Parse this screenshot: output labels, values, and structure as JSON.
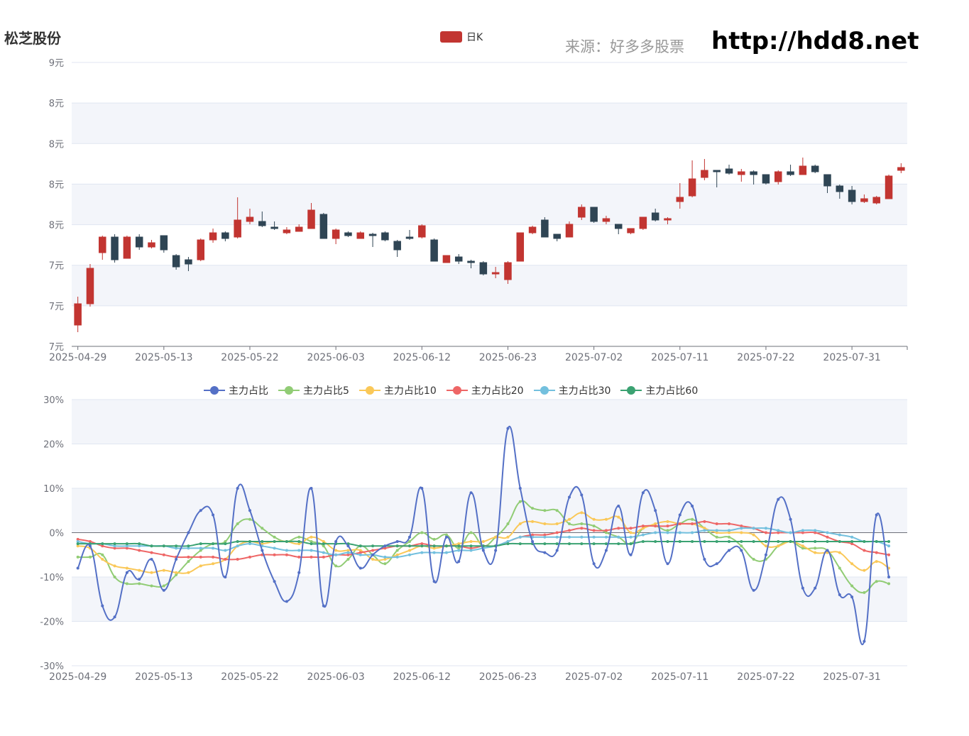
{
  "header": {
    "title": "松芝股份",
    "source": "来源：好多多股票",
    "site": "http://hdd8.net"
  },
  "kline_legend": "日K",
  "line_legend": [
    "主力占比",
    "主力占比5",
    "主力占比10",
    "主力占比20",
    "主力占比30",
    "主力占比60"
  ],
  "colors": {
    "up": "#c23531",
    "down": "#2f4554",
    "series": [
      "#5470c6",
      "#91cc75",
      "#fac858",
      "#ee6666",
      "#73c0de",
      "#3ba272"
    ],
    "grid_band": "#f3f5fa",
    "grid_line": "#e0e6f1",
    "axis_text": "#6e7079"
  },
  "chart_data": [
    {
      "type": "candlestick",
      "title": "",
      "legend": [
        "日K"
      ],
      "ylim": [
        7.0,
        9.0
      ],
      "y_tick_labels": [
        "9元",
        "8元",
        "8元",
        "8元",
        "8元",
        "7元",
        "7元",
        "7元"
      ],
      "x_tick_labels": [
        "2025-04-29",
        "2025-05-13",
        "2025-05-22",
        "2025-06-03",
        "2025-06-12",
        "2025-06-23",
        "2025-07-02",
        "2025-07-11",
        "2025-07-22",
        "2025-07-31"
      ],
      "x_tick_index": [
        0,
        7,
        14,
        21,
        28,
        35,
        42,
        49,
        56,
        63
      ],
      "ohlc": [
        [
          7.15,
          7.3,
          7.1,
          7.35
        ],
        [
          7.3,
          7.55,
          7.28,
          7.58
        ],
        [
          7.66,
          7.77,
          7.61,
          7.78
        ],
        [
          7.77,
          7.61,
          7.59,
          7.79
        ],
        [
          7.62,
          7.77,
          7.62,
          7.78
        ],
        [
          7.77,
          7.7,
          7.68,
          7.79
        ],
        [
          7.7,
          7.73,
          7.69,
          7.75
        ],
        [
          7.78,
          7.68,
          7.66,
          7.78
        ],
        [
          7.64,
          7.56,
          7.54,
          7.65
        ],
        [
          7.61,
          7.58,
          7.53,
          7.63
        ],
        [
          7.61,
          7.75,
          7.6,
          7.76
        ],
        [
          7.75,
          7.8,
          7.73,
          7.83
        ],
        [
          7.8,
          7.76,
          7.74,
          7.81
        ],
        [
          7.77,
          7.89,
          7.76,
          8.05
        ],
        [
          7.88,
          7.91,
          7.86,
          7.97
        ],
        [
          7.88,
          7.85,
          7.84,
          7.95
        ],
        [
          7.84,
          7.83,
          7.82,
          7.88
        ],
        [
          7.8,
          7.82,
          7.79,
          7.84
        ],
        [
          7.81,
          7.84,
          7.81,
          7.86
        ],
        [
          7.83,
          7.96,
          7.83,
          8.01
        ],
        [
          7.93,
          7.76,
          7.76,
          7.94
        ],
        [
          7.76,
          7.82,
          7.72,
          7.83
        ],
        [
          7.8,
          7.78,
          7.77,
          7.81
        ],
        [
          7.76,
          7.8,
          7.76,
          7.81
        ],
        [
          7.79,
          7.78,
          7.7,
          7.8
        ],
        [
          7.8,
          7.75,
          7.74,
          7.81
        ],
        [
          7.74,
          7.68,
          7.63,
          7.75
        ],
        [
          7.77,
          7.76,
          7.75,
          7.82
        ],
        [
          7.77,
          7.85,
          7.76,
          7.86
        ],
        [
          7.75,
          7.6,
          7.6,
          7.76
        ],
        [
          7.59,
          7.64,
          7.59,
          7.64
        ],
        [
          7.63,
          7.6,
          7.58,
          7.65
        ],
        [
          7.6,
          7.59,
          7.55,
          7.61
        ],
        [
          7.59,
          7.51,
          7.5,
          7.6
        ],
        [
          7.51,
          7.52,
          7.48,
          7.56
        ],
        [
          7.47,
          7.59,
          7.44,
          7.6
        ],
        [
          7.6,
          7.8,
          7.6,
          7.8
        ],
        [
          7.8,
          7.84,
          7.79,
          7.85
        ],
        [
          7.89,
          7.77,
          7.77,
          7.91
        ],
        [
          7.79,
          7.76,
          7.74,
          7.79
        ],
        [
          7.77,
          7.86,
          7.77,
          7.88
        ],
        [
          7.91,
          7.98,
          7.89,
          8.0
        ],
        [
          7.98,
          7.88,
          7.87,
          7.98
        ],
        [
          7.88,
          7.9,
          7.86,
          7.92
        ],
        [
          7.86,
          7.83,
          7.79,
          7.86
        ],
        [
          7.8,
          7.83,
          7.79,
          7.83
        ],
        [
          7.83,
          7.91,
          7.82,
          7.91
        ],
        [
          7.94,
          7.89,
          7.88,
          7.97
        ],
        [
          7.89,
          7.9,
          7.86,
          7.91
        ],
        [
          8.02,
          8.05,
          7.97,
          8.15
        ],
        [
          8.06,
          8.18,
          8.05,
          8.31
        ],
        [
          8.19,
          8.24,
          8.17,
          8.32
        ],
        [
          8.24,
          8.23,
          8.12,
          8.24
        ],
        [
          8.25,
          8.22,
          8.21,
          8.28
        ],
        [
          8.21,
          8.23,
          8.16,
          8.25
        ],
        [
          8.23,
          8.21,
          8.14,
          8.24
        ],
        [
          8.21,
          8.15,
          8.14,
          8.21
        ],
        [
          8.16,
          8.23,
          8.14,
          8.24
        ],
        [
          8.23,
          8.21,
          8.2,
          8.28
        ],
        [
          8.21,
          8.27,
          8.21,
          8.33
        ],
        [
          8.27,
          8.23,
          8.22,
          8.28
        ],
        [
          8.21,
          8.13,
          8.08,
          8.21
        ],
        [
          8.13,
          8.09,
          8.04,
          8.14
        ],
        [
          8.1,
          8.02,
          8.0,
          8.13
        ],
        [
          8.02,
          8.04,
          8.01,
          8.07
        ],
        [
          8.01,
          8.05,
          8.0,
          8.06
        ],
        [
          8.04,
          8.2,
          8.04,
          8.21
        ],
        [
          8.24,
          8.26,
          8.22,
          8.29
        ]
      ]
    },
    {
      "type": "line",
      "title": "",
      "ylim": [
        -30,
        30
      ],
      "y_tick_labels": [
        "30%",
        "20%",
        "10%",
        "0%",
        "-10%",
        "-20%",
        "-30%"
      ],
      "x_tick_labels": [
        "2025-04-29",
        "2025-05-13",
        "2025-05-22",
        "2025-06-03",
        "2025-06-12",
        "2025-06-23",
        "2025-07-02",
        "2025-07-11",
        "2025-07-22",
        "2025-07-31"
      ],
      "x_tick_index": [
        0,
        7,
        14,
        21,
        28,
        35,
        42,
        49,
        56,
        63
      ],
      "series": [
        {
          "name": "主力占比",
          "values": [
            -8,
            -3,
            -16.5,
            -19,
            -9,
            -10.5,
            -6,
            -13,
            -6,
            0,
            5,
            4,
            -10,
            10,
            5,
            -4,
            -11,
            -15.5,
            -9,
            10,
            -16.5,
            -2,
            -3,
            -8,
            -5,
            -3,
            -2,
            -1,
            10,
            -11,
            -1,
            -6.5,
            9,
            -4,
            -4,
            23.5,
            10,
            -2,
            -4.5,
            -4,
            8,
            8.5,
            -7,
            -4,
            6,
            -5,
            9,
            5,
            -7,
            4,
            6,
            -6,
            -7,
            -4,
            -4,
            -13,
            -5,
            7.5,
            3,
            -12.5,
            -12.5,
            -4,
            -14,
            -14.5,
            -24.5,
            4,
            -10
          ]
        },
        {
          "name": "主力占比5",
          "values": [
            -5.5,
            -5.5,
            -5,
            -10,
            -11.5,
            -11.5,
            -12,
            -12,
            -9.5,
            -6.5,
            -4,
            -2.5,
            -2,
            2,
            3,
            1,
            -1,
            -2,
            -1,
            -2,
            -3,
            -7.5,
            -6,
            -3,
            -5,
            -7,
            -4,
            -2,
            0,
            -1.5,
            -0.5,
            -3.5,
            0,
            -3,
            -1,
            2,
            7,
            5.5,
            5,
            5,
            2,
            2,
            1.5,
            0,
            -1,
            -2.5,
            1,
            1.5,
            0.5,
            2,
            3,
            1,
            -1,
            -1,
            -3,
            -6,
            -6,
            -3,
            -2,
            -3.5,
            -3.5,
            -4,
            -8,
            -12,
            -13.5,
            -11,
            -11.5
          ]
        },
        {
          "name": "主力占比10",
          "values": [
            -3,
            -3.5,
            -6,
            -7.5,
            -8,
            -8.5,
            -9,
            -8.5,
            -9,
            -9,
            -7.5,
            -7,
            -6,
            -3,
            -2,
            -2.5,
            -2,
            -2,
            -2.5,
            -1,
            -2,
            -4,
            -4,
            -4,
            -6,
            -6,
            -5,
            -4,
            -3,
            -3.5,
            -3,
            -2.5,
            -2,
            -2,
            -1,
            -1,
            2,
            2.5,
            2,
            2,
            3,
            4.5,
            3,
            3,
            3.5,
            0,
            1,
            2,
            2.5,
            2,
            2,
            1,
            0,
            0,
            0,
            -0.5,
            -3,
            -3,
            -2,
            -3,
            -4.5,
            -4.5,
            -4.5,
            -7,
            -8.5,
            -6.5,
            -8
          ]
        },
        {
          "name": "主力占比20",
          "values": [
            -1.5,
            -2,
            -3,
            -3.5,
            -3.5,
            -4,
            -4.5,
            -5,
            -5.5,
            -5.5,
            -5.5,
            -5.5,
            -6,
            -6,
            -5.5,
            -5,
            -5,
            -5,
            -5.5,
            -5.5,
            -5.5,
            -5,
            -5,
            -4.5,
            -4,
            -3.5,
            -3,
            -3,
            -2.5,
            -3,
            -3,
            -3,
            -3.5,
            -3,
            -3,
            -2,
            -1,
            -0.5,
            -0.5,
            0,
            0.5,
            1,
            0.5,
            0.5,
            1,
            1,
            1.5,
            1.5,
            1.5,
            2,
            2,
            2.5,
            2,
            2,
            1.5,
            1,
            0,
            0,
            0,
            0,
            0,
            -1,
            -2,
            -2.5,
            -4,
            -4.5,
            -5
          ]
        },
        {
          "name": "主力占比30",
          "values": [
            -2,
            -2.5,
            -2.5,
            -3,
            -3,
            -3,
            -3,
            -3,
            -3.5,
            -3.5,
            -3.5,
            -3.5,
            -4,
            -3,
            -2.5,
            -3,
            -3.5,
            -4,
            -4,
            -4,
            -4.5,
            -5,
            -4.5,
            -5,
            -5,
            -5.5,
            -5.5,
            -5,
            -4.5,
            -4.5,
            -4.5,
            -4,
            -4,
            -3.5,
            -3,
            -2,
            -1,
            -1,
            -1,
            -1,
            -1,
            -1,
            -1,
            -1,
            -1,
            -1,
            -0.5,
            0,
            0,
            0,
            0,
            0.5,
            0.5,
            0.5,
            1,
            1,
            1,
            0.5,
            0,
            0.5,
            0.5,
            0,
            -0.5,
            -1,
            -2,
            -2,
            -3
          ]
        },
        {
          "name": "主力占比60",
          "values": [
            -2.5,
            -2.5,
            -2.5,
            -2.5,
            -2.5,
            -2.5,
            -3,
            -3,
            -3,
            -3,
            -2.5,
            -2.5,
            -2.5,
            -2,
            -2,
            -2,
            -2,
            -2,
            -2,
            -2.5,
            -2.5,
            -2.5,
            -2.5,
            -3,
            -3,
            -3,
            -3,
            -3,
            -3,
            -3,
            -3,
            -3,
            -3,
            -3,
            -3,
            -2.5,
            -2.5,
            -2.5,
            -2.5,
            -2.5,
            -2.5,
            -2.5,
            -2.5,
            -2.5,
            -2.5,
            -2.5,
            -2,
            -2,
            -2,
            -2,
            -2,
            -2,
            -2,
            -2,
            -2,
            -2,
            -2,
            -2,
            -2,
            -2,
            -2,
            -2,
            -2,
            -2,
            -2,
            -2,
            -2
          ]
        }
      ]
    }
  ]
}
